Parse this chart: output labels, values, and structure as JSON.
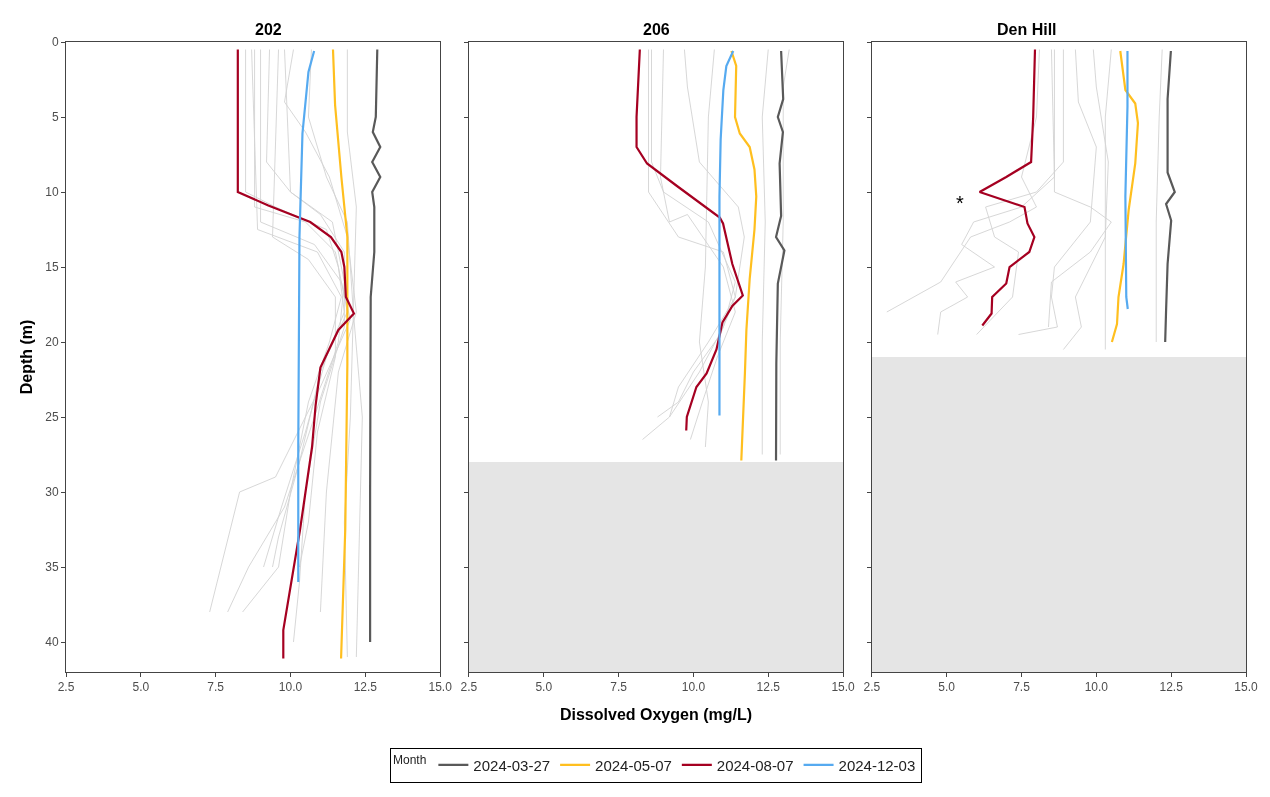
{
  "chart_data": [
    {
      "type": "line",
      "title": "202",
      "ylabel": "Depth (m)",
      "xlim": [
        2.5,
        15
      ],
      "xticks": [
        {
          "value": 2.5,
          "label": "2.5"
        },
        {
          "value": 5,
          "label": "5.0"
        },
        {
          "value": 7.5,
          "label": "7.5"
        },
        {
          "value": 10,
          "label": "10.0"
        },
        {
          "value": 12.5,
          "label": "12.5"
        },
        {
          "value": 15,
          "label": "15.0"
        }
      ],
      "ylim": [
        42,
        0
      ],
      "yticks": [
        0,
        5,
        10,
        15,
        20,
        25,
        30,
        35,
        40
      ],
      "grid": false,
      "marker": "none",
      "line_style": "solid",
      "legend": "bottom",
      "legend_title": "Month",
      "series": [
        {
          "color": "#d3d3d3",
          "x": [
            8.5,
            8.5,
            9.5,
            11.2,
            11.6,
            11.8,
            11.0,
            10.3,
            9.6,
            9.4
          ],
          "values": [
            0.5,
            10,
            11,
            12.5,
            15,
            18,
            22,
            28,
            33,
            35
          ]
        },
        {
          "color": "#d3d3d3",
          "x": [
            8.8,
            8.8,
            10.5,
            11.5,
            11.9,
            11.2,
            10.5,
            9.7,
            9.1
          ],
          "values": [
            0.5,
            11,
            12,
            14,
            18,
            21,
            26,
            31,
            35
          ]
        },
        {
          "color": "#d3d3d3",
          "x": [
            9.0,
            9.0,
            10.8,
            11.7,
            12.0,
            11.0,
            9.5,
            8.3,
            7.8,
            7.3
          ],
          "values": [
            0.5,
            12,
            13.5,
            16,
            18.5,
            23,
            29,
            30,
            34,
            38
          ]
        },
        {
          "color": "#d3d3d3",
          "x": [
            9.3,
            9.2,
            10.0,
            11.4,
            11.8,
            11.6,
            10.8,
            9.8,
            8.6,
            7.9
          ],
          "values": [
            0.5,
            8,
            10,
            12,
            16,
            20,
            25,
            31,
            35,
            38
          ]
        },
        {
          "color": "#d3d3d3",
          "x": [
            9.6,
            9.4,
            10.6,
            11.5,
            11.5,
            10.9,
            10.6,
            10.3
          ],
          "values": [
            0.5,
            13,
            14.5,
            17,
            21,
            26,
            32,
            35
          ]
        },
        {
          "color": "#d3d3d3",
          "x": [
            10.1,
            9.8,
            10.5,
            11.3,
            11.9,
            12.2,
            11.6,
            11.2,
            11.0
          ],
          "values": [
            0.5,
            4,
            6,
            9,
            13,
            18,
            22,
            30,
            38
          ]
        },
        {
          "color": "#d3d3d3",
          "x": [
            10.7,
            10.6,
            11.2,
            11.9,
            12.1,
            12.0,
            11.8,
            11.9
          ],
          "values": [
            0.5,
            5,
            9,
            12,
            18,
            25,
            32,
            41
          ]
        },
        {
          "color": "#d3d3d3",
          "x": [
            11.9,
            11.9,
            12.2,
            12.1,
            12.4,
            12.3,
            12.2
          ],
          "values": [
            0.5,
            6,
            11,
            18,
            25,
            33,
            41
          ]
        },
        {
          "color": "#d3d3d3",
          "x": [
            8.7,
            8.9,
            10.9,
            11.7,
            11.3,
            10.6,
            10.0,
            9.6,
            8.4
          ],
          "values": [
            0.5,
            12.5,
            14,
            17,
            20,
            24,
            30,
            35,
            38
          ]
        },
        {
          "color": "#d3d3d3",
          "x": [
            9.8,
            10.0,
            11.0,
            11.8,
            11.8,
            11.0,
            10.5,
            10.3,
            10.1
          ],
          "values": [
            0.5,
            10,
            11.5,
            14,
            19,
            24,
            30,
            36,
            40
          ]
        },
        {
          "name": "2024-03-27",
          "color": "#595959",
          "x": [
            12.9,
            12.85,
            12.75,
            13.0,
            12.73,
            13.0,
            12.73,
            12.8,
            12.8,
            12.68,
            12.66,
            12.66
          ],
          "values": [
            0.5,
            5,
            6,
            7,
            8,
            9,
            10,
            11,
            14,
            17,
            30,
            40
          ]
        },
        {
          "name": "2024-05-07",
          "color": "#ffbf1f",
          "x": [
            11.42,
            11.49,
            11.7,
            11.9,
            11.9,
            11.83,
            11.69
          ],
          "values": [
            0.5,
            4.2,
            9,
            13,
            21.5,
            32.5,
            41.1
          ]
        },
        {
          "name": "2024-08-07",
          "color": "#a50021",
          "x": [
            8.24,
            8.24,
            9.26,
            10.66,
            11.35,
            11.7,
            11.8,
            11.85,
            12.12,
            11.6,
            11.0,
            10.84,
            10.72,
            10.32,
            9.76,
            9.76
          ],
          "values": [
            0.5,
            10,
            10.9,
            12,
            13,
            14,
            15,
            17,
            18.1,
            19.2,
            21.7,
            24.2,
            27,
            32.5,
            39.2,
            41.1
          ]
        },
        {
          "name": "2024-12-03",
          "color": "#56aaf0",
          "x": [
            10.79,
            10.6,
            10.4,
            10.3,
            10.26,
            10.26
          ],
          "values": [
            0.6,
            2,
            6.1,
            13,
            27,
            36
          ]
        }
      ]
    },
    {
      "type": "line",
      "title": "206",
      "xlabel": "Dissolved Oxygen (mg/L)",
      "xlim": [
        2.5,
        15
      ],
      "xticks": [
        {
          "value": 2.5,
          "label": "2.5"
        },
        {
          "value": 5,
          "label": "5.0"
        },
        {
          "value": 7.5,
          "label": "7.5"
        },
        {
          "value": 10,
          "label": "10.0"
        },
        {
          "value": 12.5,
          "label": "12.5"
        },
        {
          "value": 15,
          "label": "15.0"
        }
      ],
      "ylim": [
        42,
        0
      ],
      "yticks": [
        0,
        5,
        10,
        15,
        20,
        25,
        30,
        35,
        40
      ],
      "tick_labels": "x",
      "grid": false,
      "marker": "none",
      "line_style": "solid",
      "bands": [
        {
          "axis": "y",
          "from": 28,
          "to": 42,
          "color": "#e5e5e5"
        }
      ],
      "series": [
        {
          "color": "#d3d3d3",
          "x": [
            8.6,
            8.6,
            9.0,
            10.5,
            11.4,
            11.0,
            10.2,
            9.2,
            8.3
          ],
          "values": [
            0.5,
            8,
            10,
            12,
            16,
            19,
            22,
            25,
            26.5
          ]
        },
        {
          "color": "#d3d3d3",
          "x": [
            9.0,
            8.9,
            9.2,
            9.8,
            11.0,
            11.4,
            10.8,
            10.3,
            9.9
          ],
          "values": [
            0.5,
            9,
            12,
            11.5,
            15,
            18,
            21,
            24,
            26.5
          ]
        },
        {
          "color": "#d3d3d3",
          "x": [
            9.7,
            9.8,
            10.2,
            11.5,
            11.7,
            11.4,
            10.5,
            9.5,
            9.2
          ],
          "values": [
            0.5,
            3,
            8,
            11,
            13,
            17,
            20,
            23,
            25
          ]
        },
        {
          "color": "#d3d3d3",
          "x": [
            10.7,
            10.5,
            10.4,
            10.2,
            10.5,
            10.4
          ],
          "values": [
            0.5,
            5,
            15,
            20,
            24,
            27
          ]
        },
        {
          "color": "#d3d3d3",
          "x": [
            12.5,
            12.3,
            12.4,
            12.3,
            12.3
          ],
          "values": [
            0.5,
            5,
            12,
            20,
            27.5
          ]
        },
        {
          "color": "#d3d3d3",
          "x": [
            13.2,
            13.0,
            13.0,
            12.9,
            12.9
          ],
          "values": [
            0.5,
            3,
            12,
            20,
            27.5
          ]
        },
        {
          "color": "#d3d3d3",
          "x": [
            8.5,
            8.5,
            9.5,
            11.0,
            11.4,
            10.9,
            10.0,
            9.5,
            8.8
          ],
          "values": [
            0.5,
            10,
            13,
            14,
            17,
            19.5,
            22,
            24,
            25
          ]
        },
        {
          "name": "2024-03-27",
          "color": "#595959",
          "x": [
            12.93,
            13.0,
            12.82,
            12.99,
            12.88,
            12.93,
            12.76,
            13.04,
            12.82,
            12.77,
            12.76
          ],
          "values": [
            0.6,
            3.8,
            5,
            6,
            8.1,
            11.6,
            13,
            13.9,
            16.1,
            21.4,
            27.9
          ]
        },
        {
          "name": "2024-05-07",
          "color": "#ffbf1f",
          "x": [
            11.27,
            11.43,
            11.39,
            11.55,
            11.88,
            12.04,
            12.1,
            12.04,
            11.88,
            11.77,
            11.72,
            11.6
          ],
          "values": [
            0.6,
            1.6,
            5,
            6.1,
            7,
            8.5,
            10.3,
            12.5,
            15.8,
            19.2,
            22.1,
            27.9
          ]
        },
        {
          "name": "2024-08-07",
          "color": "#a50021",
          "x": [
            8.21,
            8.1,
            8.1,
            8.45,
            9.45,
            10.88,
            10.99,
            11.3,
            11.65,
            11.3,
            10.97,
            10.77,
            10.44,
            10.1,
            9.78,
            9.76
          ],
          "values": [
            0.5,
            5,
            7,
            8.1,
            9.6,
            11.7,
            12.1,
            14.8,
            16.9,
            17.6,
            18.7,
            20.5,
            22.1,
            23,
            25,
            25.9
          ]
        },
        {
          "name": "2024-12-03",
          "color": "#56aaf0",
          "x": [
            11.33,
            11.1,
            11.0,
            10.91,
            10.87,
            10.87
          ],
          "values": [
            0.6,
            1.6,
            3.2,
            6.5,
            10.3,
            24.9
          ]
        }
      ]
    },
    {
      "type": "line",
      "title": "Den Hill",
      "xlim": [
        2.5,
        15
      ],
      "xticks": [
        {
          "value": 2.5,
          "label": "2.5"
        },
        {
          "value": 5,
          "label": "5.0"
        },
        {
          "value": 7.5,
          "label": "7.5"
        },
        {
          "value": 10,
          "label": "10.0"
        },
        {
          "value": 12.5,
          "label": "12.5"
        },
        {
          "value": 15,
          "label": "15.0"
        }
      ],
      "ylim": [
        42,
        0
      ],
      "yticks": [
        0,
        5,
        10,
        15,
        20,
        25,
        30,
        35,
        40
      ],
      "tick_labels": "x",
      "grid": false,
      "marker": "none",
      "line_style": "solid",
      "bands": [
        {
          "axis": "y",
          "from": 21,
          "to": 42,
          "color": "#e5e5e5"
        }
      ],
      "annotations": [
        "*"
      ],
      "series": [
        {
          "color": "#d3d3d3",
          "x": [
            8.1,
            8.0,
            7.5,
            8.0,
            7.1,
            5.8,
            4.8,
            3.0
          ],
          "values": [
            0.5,
            5,
            9,
            11,
            12,
            13,
            16,
            18
          ]
        },
        {
          "color": "#d3d3d3",
          "x": [
            8.5,
            8.6,
            7.5,
            5.9,
            5.5,
            6.6,
            5.3,
            5.7,
            4.8,
            4.7
          ],
          "values": [
            0.5,
            9,
            11,
            12,
            13.5,
            15,
            16,
            17,
            18,
            19.5
          ]
        },
        {
          "color": "#d3d3d3",
          "x": [
            8.9,
            8.9,
            8.0,
            6.3,
            6.6,
            7.4,
            7.2,
            6.0
          ],
          "values": [
            0.5,
            8,
            10,
            11,
            13,
            14,
            17,
            19.5
          ]
        },
        {
          "color": "#d3d3d3",
          "x": [
            9.3,
            9.4,
            10.0,
            9.8,
            8.6,
            8.5,
            8.7,
            7.4
          ],
          "values": [
            0.5,
            4,
            7,
            12,
            15,
            17,
            19,
            19.5
          ]
        },
        {
          "color": "#d3d3d3",
          "x": [
            9.9,
            10.0,
            10.4,
            10.3,
            9.8,
            9.3,
            9.5,
            8.9
          ],
          "values": [
            0.5,
            3,
            8,
            13,
            15,
            17,
            19,
            20.5
          ]
        },
        {
          "color": "#d3d3d3",
          "x": [
            10.5,
            10.3,
            10.3,
            10.3
          ],
          "values": [
            0.5,
            5,
            15,
            20.5
          ]
        },
        {
          "color": "#d3d3d3",
          "x": [
            12.2,
            12.1,
            12.0,
            12.0
          ],
          "values": [
            0.5,
            5,
            12,
            20
          ]
        },
        {
          "color": "#d3d3d3",
          "x": [
            8.6,
            8.6,
            9.8,
            10.5,
            9.8,
            8.5,
            8.4
          ],
          "values": [
            0.5,
            10,
            11,
            12,
            14,
            16,
            19
          ]
        },
        {
          "name": "2024-03-27",
          "color": "#595959",
          "x": [
            12.49,
            12.38,
            12.38,
            12.62,
            12.33,
            12.5,
            12.38,
            12.33,
            12.3
          ],
          "values": [
            0.6,
            3.8,
            8.7,
            10,
            10.8,
            11.9,
            14.8,
            17.9,
            20
          ]
        },
        {
          "name": "2024-05-07",
          "color": "#ffbf1f",
          "x": [
            10.8,
            10.97,
            11.3,
            11.39,
            11.3,
            11.08,
            10.91,
            10.74,
            10.69,
            10.52
          ],
          "values": [
            0.6,
            3.2,
            4.1,
            5.4,
            8.1,
            11.2,
            14.8,
            17,
            18.8,
            20
          ]
        },
        {
          "name": "2024-08-07",
          "color": "#a50021",
          "x": [
            7.95,
            7.89,
            7.82,
            6.99,
            6.1,
            7.6,
            7.7,
            7.93,
            7.76,
            7.1,
            6.99,
            6.52,
            6.5,
            6.19
          ],
          "values": [
            0.5,
            5,
            8,
            9,
            10,
            11,
            12.1,
            13,
            14,
            15,
            16.1,
            17,
            18.1,
            18.9
          ]
        },
        {
          "name": "2024-12-03",
          "color": "#56aaf0",
          "x": [
            11.04,
            11.04,
            10.97,
            11.0,
            11.05
          ],
          "values": [
            0.6,
            4.3,
            10.3,
            17,
            17.8
          ]
        }
      ]
    }
  ]
}
